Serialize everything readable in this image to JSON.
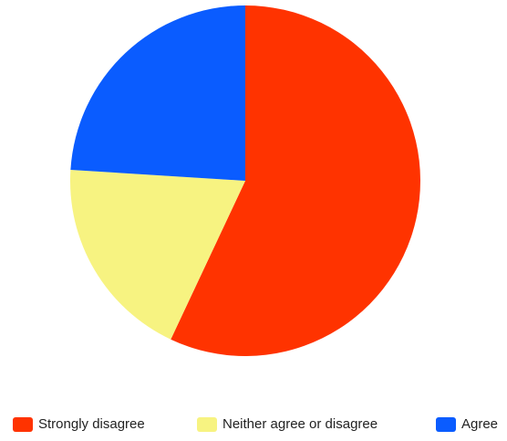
{
  "chart_data": {
    "type": "pie",
    "title": "",
    "start_angle_deg": 0,
    "direction": "clockwise",
    "legend_position": "bottom",
    "slices": [
      {
        "label": "Strongly disagree",
        "value": 57,
        "color": "#ff3300"
      },
      {
        "label": "Neither agree or disagree",
        "value": 19,
        "color": "#f7f381"
      },
      {
        "label": "Agree",
        "value": 24,
        "color": "#0a5cff"
      }
    ]
  }
}
